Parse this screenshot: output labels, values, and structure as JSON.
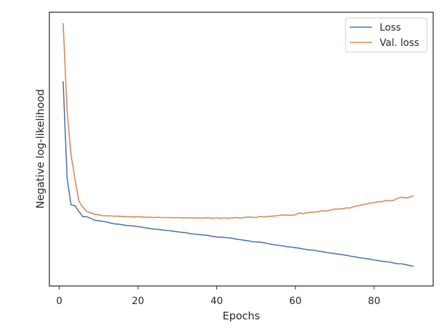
{
  "chart_data": {
    "type": "line",
    "xlabel": "Epochs",
    "ylabel": "Negative log-likelihood",
    "xlim": [
      -2.5,
      95
    ],
    "ylim": [
      0,
      1
    ],
    "x_ticks": [
      0,
      20,
      40,
      60,
      80
    ],
    "y_ticks_visible": false,
    "grid": false,
    "legend_position": "top-right",
    "x": [
      1,
      2,
      3,
      4,
      5,
      6,
      7,
      8,
      9,
      10,
      11,
      12,
      13,
      14,
      15,
      16,
      17,
      18,
      19,
      20,
      21,
      22,
      23,
      24,
      25,
      26,
      27,
      28,
      29,
      30,
      31,
      32,
      33,
      34,
      35,
      36,
      37,
      38,
      39,
      40,
      41,
      42,
      43,
      44,
      45,
      46,
      47,
      48,
      49,
      50,
      51,
      52,
      53,
      54,
      55,
      56,
      57,
      58,
      59,
      60,
      61,
      62,
      63,
      64,
      65,
      66,
      67,
      68,
      69,
      70,
      71,
      72,
      73,
      74,
      75,
      76,
      77,
      78,
      79,
      80,
      81,
      82,
      83,
      84,
      85,
      86,
      87,
      88,
      89,
      90
    ],
    "series": [
      {
        "name": "Loss",
        "color": "#4c72b0",
        "values": [
          0.748,
          0.395,
          0.296,
          0.293,
          0.272,
          0.253,
          0.253,
          0.247,
          0.24,
          0.238,
          0.236,
          0.234,
          0.23,
          0.227,
          0.226,
          0.224,
          0.221,
          0.22,
          0.219,
          0.217,
          0.215,
          0.212,
          0.21,
          0.208,
          0.207,
          0.205,
          0.203,
          0.202,
          0.2,
          0.198,
          0.196,
          0.195,
          0.192,
          0.19,
          0.189,
          0.187,
          0.186,
          0.184,
          0.181,
          0.179,
          0.178,
          0.177,
          0.176,
          0.174,
          0.171,
          0.169,
          0.167,
          0.165,
          0.162,
          0.161,
          0.16,
          0.158,
          0.155,
          0.152,
          0.15,
          0.148,
          0.146,
          0.143,
          0.142,
          0.14,
          0.138,
          0.135,
          0.133,
          0.131,
          0.13,
          0.127,
          0.125,
          0.122,
          0.12,
          0.118,
          0.116,
          0.114,
          0.112,
          0.109,
          0.107,
          0.104,
          0.102,
          0.1,
          0.098,
          0.095,
          0.093,
          0.09,
          0.089,
          0.087,
          0.084,
          0.081,
          0.081,
          0.078,
          0.075,
          0.072
        ]
      },
      {
        "name": "Val. loss",
        "color": "#dd8452",
        "values": [
          0.96,
          0.64,
          0.48,
          0.39,
          0.31,
          0.288,
          0.272,
          0.267,
          0.262,
          0.26,
          0.257,
          0.256,
          0.256,
          0.255,
          0.255,
          0.254,
          0.253,
          0.253,
          0.252,
          0.253,
          0.252,
          0.251,
          0.251,
          0.25,
          0.251,
          0.25,
          0.25,
          0.25,
          0.249,
          0.25,
          0.249,
          0.249,
          0.249,
          0.248,
          0.249,
          0.248,
          0.249,
          0.249,
          0.247,
          0.249,
          0.247,
          0.249,
          0.247,
          0.249,
          0.25,
          0.248,
          0.25,
          0.252,
          0.251,
          0.25,
          0.254,
          0.252,
          0.254,
          0.255,
          0.256,
          0.258,
          0.259,
          0.259,
          0.258,
          0.26,
          0.267,
          0.264,
          0.268,
          0.269,
          0.27,
          0.272,
          0.275,
          0.274,
          0.278,
          0.281,
          0.281,
          0.282,
          0.285,
          0.285,
          0.291,
          0.293,
          0.297,
          0.299,
          0.303,
          0.304,
          0.308,
          0.308,
          0.313,
          0.311,
          0.313,
          0.321,
          0.324,
          0.321,
          0.324,
          0.33
        ]
      }
    ]
  }
}
